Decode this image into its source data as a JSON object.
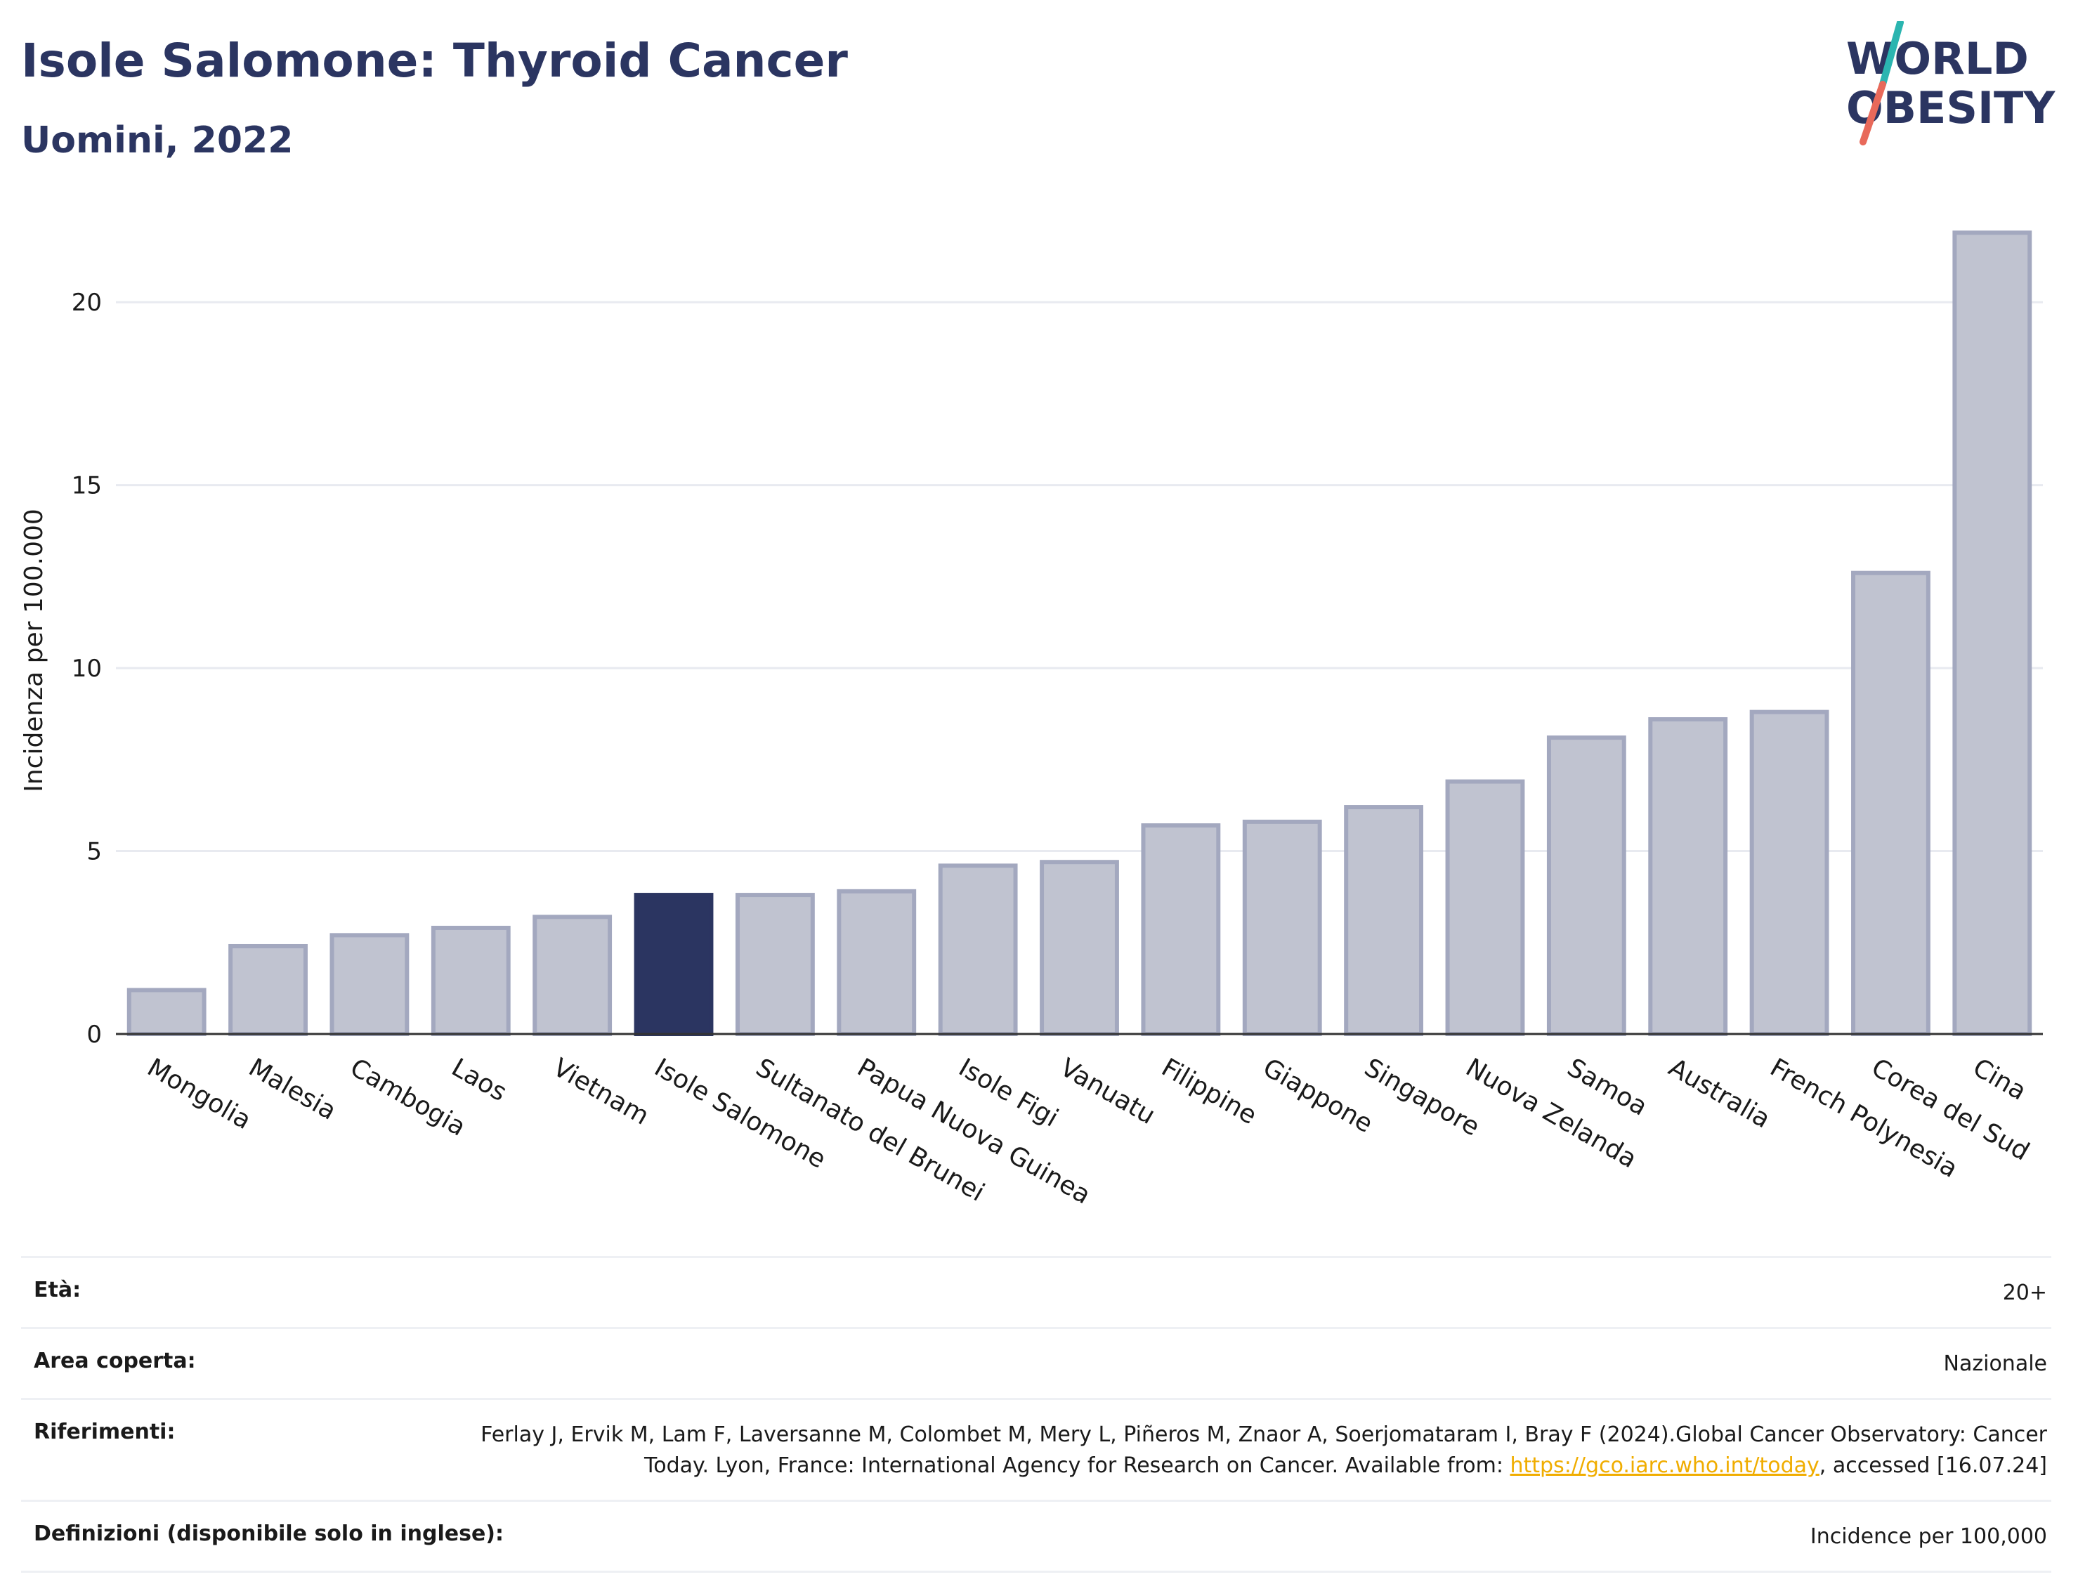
{
  "header": {
    "title": "Isole Salomone: Thyroid Cancer",
    "subtitle": "Uomini, 2022"
  },
  "logo": {
    "line1": "WORLD",
    "line2": "OBESITY",
    "accent_teal": "#2bb5b0",
    "accent_red": "#e8695a"
  },
  "colors": {
    "primary": "#2b3561",
    "bar_fill": "#c0c3d0",
    "bar_stroke": "#a3a8bf",
    "highlight": "#2b3561",
    "grid": "#e8eaf0"
  },
  "chart_data": {
    "type": "bar",
    "ylabel": "Incidenza per 100.000",
    "ylim": [
      0,
      22.5
    ],
    "yticks": [
      0,
      5,
      10,
      15,
      20
    ],
    "grid": true,
    "highlight": "Isole Salomone",
    "categories": [
      "Mongolia",
      "Malesia",
      "Cambogia",
      "Laos",
      "Vietnam",
      "Isole Salomone",
      "Sultanato del Brunei",
      "Papua Nuova Guinea",
      "Isole Figi",
      "Vanuatu",
      "Filippine",
      "Giappone",
      "Singapore",
      "Nuova Zelanda",
      "Samoa",
      "Australia",
      "French Polynesia",
      "Corea del Sud",
      "Cina"
    ],
    "values": [
      1.2,
      2.4,
      2.7,
      2.9,
      3.2,
      3.8,
      3.8,
      3.9,
      4.6,
      4.7,
      5.7,
      5.8,
      6.2,
      6.9,
      8.1,
      8.6,
      8.8,
      12.6,
      21.9
    ]
  },
  "info": {
    "rows": [
      {
        "label": "Età:",
        "value": "20+"
      },
      {
        "label": "Area coperta:",
        "value": "Nazionale"
      },
      {
        "label": "Riferimenti:",
        "value_pre": "Ferlay J, Ervik M, Lam F, Laversanne M, Colombet M, Mery L, Piñeros M, Znaor A, Soerjomataram I, Bray F (2024).Global Cancer Observatory: Cancer Today. Lyon, France: International Agency for Research on Cancer. Available from: ",
        "link": "https://gco.iarc.who.int/today",
        "value_post": ", accessed [16.07.24]"
      },
      {
        "label": "Definizioni (disponibile solo in inglese):",
        "value": "Incidence per 100,000"
      }
    ]
  }
}
